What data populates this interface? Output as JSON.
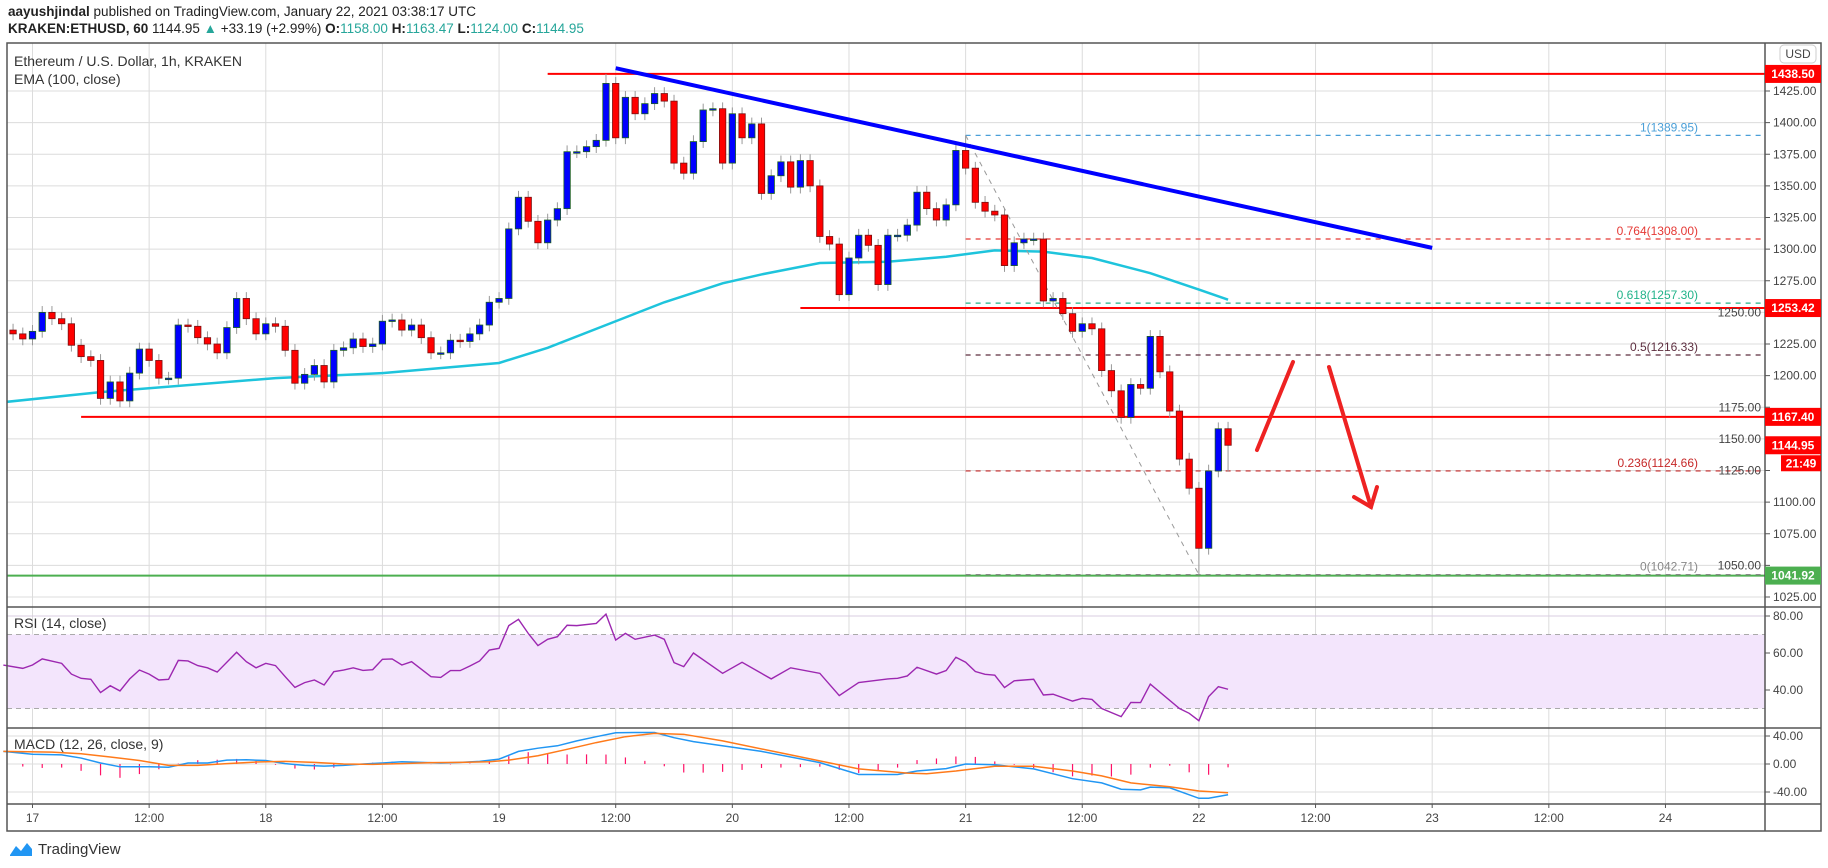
{
  "header": {
    "author": "aayushjindal",
    "published": "published on TradingView.com, January 22, 2021 03:38:17 UTC",
    "symbol": "KRAKEN:ETHUSD, 60",
    "last": "1144.95",
    "change_icon": "triangle-up-icon",
    "change": "+33.19 (+2.99%)",
    "o_label": "O:",
    "o": "1158.00",
    "h_label": "H:",
    "h": "1163.47",
    "l_label": "L:",
    "l": "1124.00",
    "c_label": "C:",
    "c": "1144.95"
  },
  "legend": {
    "title": "Ethereum / U.S. Dollar, 1h, KRAKEN",
    "ema": "EMA (100, close)",
    "rsi": "RSI (14, close)",
    "macd": "MACD (12, 26, close, 9)"
  },
  "currency": "USD",
  "countdown": "21:49",
  "logo_text": "TradingView",
  "colors": {
    "up": "#0000ff",
    "down": "#ff0000",
    "ema": "#1ec4dc",
    "trendline": "#0000ff",
    "resistance": "#ff0000",
    "support": "#4caf50",
    "rsi": "#9c27b0",
    "rsi_band": "#f3e5fc",
    "macd": "#2196f3",
    "signal": "#ff7a1a",
    "histogram": "#ff1166"
  },
  "chart_data": {
    "type": "candlestick",
    "interval": "1h",
    "first_candle": "Jan 16 21:00",
    "first_open": 1273,
    "closes": [
      1236,
      1233,
      1229,
      1235,
      1250,
      1245,
      1241,
      1224,
      1215,
      1212,
      1182,
      1195,
      1180,
      1202,
      1221,
      1212,
      1198,
      1198,
      1240,
      1239,
      1230,
      1225,
      1218,
      1238,
      1261,
      1245,
      1233,
      1241,
      1239,
      1220,
      1194,
      1201,
      1208,
      1195,
      1220,
      1222,
      1229,
      1223,
      1225,
      1243,
      1244,
      1236,
      1240,
      1230,
      1218,
      1218,
      1228,
      1227,
      1233,
      1240,
      1258,
      1261,
      1316,
      1341,
      1322,
      1305,
      1323,
      1332,
      1377,
      1377,
      1381,
      1386,
      1431,
      1388,
      1420,
      1407,
      1415,
      1423,
      1417,
      1368,
      1360,
      1385,
      1410,
      1411,
      1368,
      1407,
      1388,
      1399,
      1344,
      1358,
      1369,
      1349,
      1370,
      1350,
      1310,
      1304,
      1264,
      1293,
      1311,
      1303,
      1272,
      1311,
      1311,
      1319,
      1345,
      1332,
      1323,
      1335,
      1378,
      1364,
      1337,
      1330,
      1327,
      1287,
      1305,
      1308,
      1308,
      1259,
      1261,
      1249,
      1235,
      1241,
      1237,
      1204,
      1188,
      1167,
      1193,
      1190,
      1231,
      1203,
      1172,
      1134,
      1111,
      1063.5,
      1124.6,
      1158,
      1144.95
    ],
    "notable_wicks": [
      {
        "t": "Jan 19 11:00",
        "high": 1438.5
      },
      {
        "t": "Jan 21 00:00",
        "high": 1389.95
      },
      {
        "t": "Jan 22 00:00",
        "low": 1042.71
      },
      {
        "t": "Jan 22 03:00",
        "high": 1163.47,
        "low": 1124.0
      }
    ],
    "ema100": [
      [
        "Jan 16 21:00",
        1179
      ],
      [
        "Jan 17 07:00",
        1187
      ],
      [
        "Jan 18 01:00",
        1198
      ],
      [
        "Jan 18 12:00",
        1202
      ],
      [
        "Jan 19 00:00",
        1210
      ],
      [
        "Jan 19 05:00",
        1222
      ],
      [
        "Jan 19 12:00",
        1243
      ],
      [
        "Jan 19 17:00",
        1258
      ],
      [
        "Jan 19 23:00",
        1273
      ],
      [
        "Jan 20 03:00",
        1280
      ],
      [
        "Jan 20 09:00",
        1289
      ],
      [
        "Jan 20 16:00",
        1290
      ],
      [
        "Jan 20 22:00",
        1294
      ],
      [
        "Jan 21 03:00",
        1299
      ],
      [
        "Jan 21 08:00",
        1298
      ],
      [
        "Jan 21 13:00",
        1293
      ],
      [
        "Jan 21 19:00",
        1281
      ],
      [
        "Jan 22 00:00",
        1268
      ],
      [
        "Jan 22 03:00",
        1260
      ]
    ],
    "price_axis": {
      "ticks": [
        "1425.00",
        "1400.00",
        "1375.00",
        "1350.00",
        "1325.00",
        "1300.00",
        "1275.00",
        "1250.00",
        "1225.00",
        "1200.00",
        "1175.00",
        "1150.00",
        "1125.00",
        "1100.00",
        "1075.00",
        "1050.00",
        "1025.00"
      ],
      "range": [
        1020,
        1455
      ]
    },
    "time_axis": {
      "ticks": [
        [
          "Jan 17 00:00",
          "17"
        ],
        [
          "Jan 17 12:00",
          "12:00"
        ],
        [
          "Jan 18 00:00",
          "18"
        ],
        [
          "Jan 18 12:00",
          "12:00"
        ],
        [
          "Jan 19 00:00",
          "19"
        ],
        [
          "Jan 19 12:00",
          "12:00"
        ],
        [
          "Jan 20 00:00",
          "20"
        ],
        [
          "Jan 20 12:00",
          "12:00"
        ],
        [
          "Jan 21 00:00",
          "21"
        ],
        [
          "Jan 21 12:00",
          "12:00"
        ],
        [
          "Jan 22 00:00",
          "22"
        ],
        [
          "Jan 22 12:00",
          "12:00"
        ],
        [
          "Jan 23 00:00",
          "23"
        ],
        [
          "Jan 23 12:00",
          "12:00"
        ],
        [
          "Jan 24 00:00",
          "24"
        ]
      ]
    },
    "horizontal_levels": [
      {
        "price": 1438.5,
        "label": "1438.50",
        "kind": "resistance",
        "from": "Jan 19 05:00"
      },
      {
        "price": 1253.42,
        "label": "1253.42",
        "kind": "resistance",
        "from": "Jan 20 07:00"
      },
      {
        "price": 1167.4,
        "label": "1167.40",
        "kind": "resistance",
        "from": "Jan 17 05:00"
      },
      {
        "price": 1041.92,
        "label": "1041.92",
        "kind": "support",
        "from": "Jan 16 20:00"
      }
    ],
    "last_price": {
      "price": 1144.95,
      "label": "1144.95"
    },
    "trendline": [
      [
        "Jan 19 12:00",
        1443
      ],
      [
        "Jan 23 00:00",
        1301
      ]
    ],
    "fibonacci": {
      "from": [
        "Jan 21 00:00",
        1389.95
      ],
      "to": [
        "Jan 22 00:00",
        1042.71
      ],
      "levels": [
        {
          "ratio": "1",
          "price": 1389.95,
          "label": "1(1389.95)",
          "color": "#4a9fd8"
        },
        {
          "ratio": "0.764",
          "price": 1308.0,
          "label": "0.764(1308.00)",
          "color": "#e53935"
        },
        {
          "ratio": "0.618",
          "price": 1257.3,
          "label": "0.618(1257.30)",
          "color": "#22b38a"
        },
        {
          "ratio": "0.5",
          "price": 1216.33,
          "label": "0.5(1216.33)",
          "color": "#5d2e3f"
        },
        {
          "ratio": "0.236",
          "price": 1124.66,
          "label": "0.236(1124.66)",
          "color": "#c62828"
        },
        {
          "ratio": "0",
          "price": 1042.71,
          "label": "0(1042.71)",
          "color": "#888888"
        }
      ]
    },
    "rsi": {
      "ticks": [
        "80.00",
        "60.00",
        "40.00"
      ],
      "band": [
        30,
        70
      ],
      "values": [
        [
          "Jan 16 21:00",
          53.5
        ],
        [
          "Jan 16 23:00",
          51.7
        ],
        [
          "Jan 17 00:00",
          53.5
        ],
        [
          "Jan 17 01:00",
          56.8
        ],
        [
          "Jan 17 03:00",
          54.4
        ],
        [
          "Jan 17 04:00",
          48.6
        ],
        [
          "Jan 17 05:00",
          46.3
        ],
        [
          "Jan 17 06:00",
          45.8
        ],
        [
          "Jan 17 07:00",
          38.6
        ],
        [
          "Jan 17 08:00",
          42.3
        ],
        [
          "Jan 17 09:00",
          39.5
        ],
        [
          "Jan 17 10:00",
          46
        ],
        [
          "Jan 17 11:00",
          50.8
        ],
        [
          "Jan 17 12:00",
          48.6
        ],
        [
          "Jan 17 13:00",
          45.4
        ],
        [
          "Jan 17 14:00",
          45.8
        ],
        [
          "Jan 17 15:00",
          56
        ],
        [
          "Jan 17 16:00",
          55.7
        ],
        [
          "Jan 17 17:00",
          53.2
        ],
        [
          "Jan 17 18:00",
          52
        ],
        [
          "Jan 17 19:00",
          49.7
        ],
        [
          "Jan 17 21:00",
          60.4
        ],
        [
          "Jan 17 22:00",
          55.3
        ],
        [
          "Jan 17 23:00",
          52
        ],
        [
          "Jan 18 00:00",
          54.4
        ],
        [
          "Jan 18 01:00",
          53.2
        ],
        [
          "Jan 18 02:00",
          47.2
        ],
        [
          "Jan 18 03:00",
          41.4
        ],
        [
          "Jan 18 04:00",
          44
        ],
        [
          "Jan 18 05:00",
          45.4
        ],
        [
          "Jan 18 06:00",
          42.7
        ],
        [
          "Jan 18 07:00",
          49.9
        ],
        [
          "Jan 18 08:00",
          50.8
        ],
        [
          "Jan 18 09:00",
          52
        ],
        [
          "Jan 18 10:00",
          50.6
        ],
        [
          "Jan 18 11:00",
          51
        ],
        [
          "Jan 18 12:00",
          56.6
        ],
        [
          "Jan 18 13:00",
          56.8
        ],
        [
          "Jan 18 14:00",
          53.5
        ],
        [
          "Jan 18 15:00",
          55.3
        ],
        [
          "Jan 18 17:00",
          47.2
        ],
        [
          "Jan 18 18:00",
          46.8
        ],
        [
          "Jan 18 19:00",
          50.5
        ],
        [
          "Jan 18 20:00",
          50.5
        ],
        [
          "Jan 18 21:00",
          53
        ],
        [
          "Jan 18 22:00",
          55.7
        ],
        [
          "Jan 18 23:00",
          61.6
        ],
        [
          "Jan 19 00:00",
          62.5
        ],
        [
          "Jan 19 01:00",
          74.8
        ],
        [
          "Jan 19 02:00",
          78.2
        ],
        [
          "Jan 19 03:00",
          70.6
        ],
        [
          "Jan 19 04:00",
          64
        ],
        [
          "Jan 19 05:00",
          67.4
        ],
        [
          "Jan 19 06:00",
          68.8
        ],
        [
          "Jan 19 07:00",
          75
        ],
        [
          "Jan 19 08:00",
          74.8
        ],
        [
          "Jan 19 10:00",
          76
        ],
        [
          "Jan 19 11:00",
          81
        ],
        [
          "Jan 19 12:00",
          67
        ],
        [
          "Jan 19 13:00",
          70.6
        ],
        [
          "Jan 19 14:00",
          67.4
        ],
        [
          "Jan 19 16:00",
          69.7
        ],
        [
          "Jan 19 17:00",
          67.4
        ],
        [
          "Jan 19 18:00",
          54.8
        ],
        [
          "Jan 19 19:00",
          52.6
        ],
        [
          "Jan 19 20:00",
          60
        ],
        [
          "Jan 19 23:00",
          49
        ],
        [
          "Jan 20 01:00",
          55
        ],
        [
          "Jan 20 04:00",
          46
        ],
        [
          "Jan 20 06:00",
          52
        ],
        [
          "Jan 20 09:00",
          49
        ],
        [
          "Jan 20 11:00",
          37
        ],
        [
          "Jan 20 13:00",
          44
        ],
        [
          "Jan 20 16:00",
          46
        ],
        [
          "Jan 20 17:00",
          46.3
        ],
        [
          "Jan 20 18:00",
          47.6
        ],
        [
          "Jan 20 19:00",
          52.3
        ],
        [
          "Jan 20 21:00",
          48.6
        ],
        [
          "Jan 20 22:00",
          50.5
        ],
        [
          "Jan 20 23:00",
          57.7
        ],
        [
          "Jan 21 00:00",
          55
        ],
        [
          "Jan 21 01:00",
          50
        ],
        [
          "Jan 21 02:00",
          48.5
        ],
        [
          "Jan 21 03:00",
          48
        ],
        [
          "Jan 21 04:00",
          41.3
        ],
        [
          "Jan 21 05:00",
          45
        ],
        [
          "Jan 21 07:00",
          45.8
        ],
        [
          "Jan 21 08:00",
          37.3
        ],
        [
          "Jan 21 09:00",
          37.7
        ],
        [
          "Jan 21 11:00",
          34
        ],
        [
          "Jan 21 12:00",
          35.5
        ],
        [
          "Jan 21 13:00",
          34.9
        ],
        [
          "Jan 21 14:00",
          30
        ],
        [
          "Jan 21 16:00",
          25.6
        ],
        [
          "Jan 21 17:00",
          33.3
        ],
        [
          "Jan 21 18:00",
          33.2
        ],
        [
          "Jan 21 19:00",
          43.2
        ],
        [
          "Jan 21 22:00",
          30
        ],
        [
          "Jan 21 23:00",
          27.4
        ],
        [
          "Jan 22 00:00",
          23.4
        ],
        [
          "Jan 22 01:00",
          36.4
        ],
        [
          "Jan 22 02:00",
          41.8
        ],
        [
          "Jan 22 03:00",
          40.4
        ]
      ]
    },
    "macd": {
      "ticks": [
        "40.00",
        "0.00",
        "-40.00"
      ],
      "macd": [
        [
          "Jan 16 21:00",
          18
        ],
        [
          "Jan 17 00:00",
          14
        ],
        [
          "Jan 17 03:00",
          13
        ],
        [
          "Jan 17 05:00",
          8.5
        ],
        [
          "Jan 17 07:00",
          1.4
        ],
        [
          "Jan 17 09:00",
          -4
        ],
        [
          "Jan 17 12:00",
          -4
        ],
        [
          "Jan 17 14:00",
          -4.7
        ],
        [
          "Jan 17 16:00",
          1.4
        ],
        [
          "Jan 17 18:00",
          1.4
        ],
        [
          "Jan 17 20:00",
          5.6
        ],
        [
          "Jan 17 22:00",
          6
        ],
        [
          "Jan 18 00:00",
          5
        ],
        [
          "Jan 18 02:00",
          0.5
        ],
        [
          "Jan 18 04:00",
          -2
        ],
        [
          "Jan 18 06:00",
          -3
        ],
        [
          "Jan 18 08:00",
          -2
        ],
        [
          "Jan 18 10:00",
          0
        ],
        [
          "Jan 18 12:00",
          1.4
        ],
        [
          "Jan 18 14:00",
          3.3
        ],
        [
          "Jan 18 16:00",
          2.4
        ],
        [
          "Jan 18 18:00",
          1.4
        ],
        [
          "Jan 18 20:00",
          2.4
        ],
        [
          "Jan 18 22:00",
          3.8
        ],
        [
          "Jan 19 00:00",
          7
        ],
        [
          "Jan 19 02:00",
          18
        ],
        [
          "Jan 19 04:00",
          22.6
        ],
        [
          "Jan 19 06:00",
          26
        ],
        [
          "Jan 19 08:00",
          33
        ],
        [
          "Jan 19 10:00",
          39
        ],
        [
          "Jan 19 12:00",
          44.7
        ],
        [
          "Jan 19 14:00",
          45
        ],
        [
          "Jan 19 16:00",
          45
        ],
        [
          "Jan 19 18:00",
          37.6
        ],
        [
          "Jan 19 20:00",
          32
        ],
        [
          "Jan 20 03:00",
          18
        ],
        [
          "Jan 20 09:00",
          2
        ],
        [
          "Jan 20 13:00",
          -15
        ],
        [
          "Jan 20 17:00",
          -15
        ],
        [
          "Jan 20 19:00",
          -10
        ],
        [
          "Jan 20 22:00",
          -6.6
        ],
        [
          "Jan 21 00:00",
          0
        ],
        [
          "Jan 21 03:00",
          -1
        ],
        [
          "Jan 21 07:00",
          -7
        ],
        [
          "Jan 21 11:00",
          -21
        ],
        [
          "Jan 21 14:00",
          -27
        ],
        [
          "Jan 21 16:00",
          -36
        ],
        [
          "Jan 21 18:00",
          -37
        ],
        [
          "Jan 21 19:00",
          -33
        ],
        [
          "Jan 21 21:00",
          -34
        ],
        [
          "Jan 22 00:00",
          -49
        ],
        [
          "Jan 22 01:00",
          -49
        ],
        [
          "Jan 22 03:00",
          -44
        ]
      ],
      "signal": [
        [
          "Jan 16 21:00",
          18
        ],
        [
          "Jan 17 02:00",
          17
        ],
        [
          "Jan 17 05:00",
          14.6
        ],
        [
          "Jan 17 08:00",
          10
        ],
        [
          "Jan 17 11:00",
          5
        ],
        [
          "Jan 17 14:00",
          -2
        ],
        [
          "Jan 17 17:00",
          -2
        ],
        [
          "Jan 17 20:00",
          0.5
        ],
        [
          "Jan 17 23:00",
          2.8
        ],
        [
          "Jan 18 02:00",
          3.8
        ],
        [
          "Jan 18 05:00",
          2.4
        ],
        [
          "Jan 18 08:00",
          0
        ],
        [
          "Jan 18 11:00",
          -0.5
        ],
        [
          "Jan 18 14:00",
          0.5
        ],
        [
          "Jan 18 17:00",
          2
        ],
        [
          "Jan 18 20:00",
          2.4
        ],
        [
          "Jan 18 23:00",
          3.3
        ],
        [
          "Jan 19 01:00",
          5.6
        ],
        [
          "Jan 19 04:00",
          11.8
        ],
        [
          "Jan 19 07:00",
          21
        ],
        [
          "Jan 19 10:00",
          30.6
        ],
        [
          "Jan 19 13:00",
          39
        ],
        [
          "Jan 19 16:00",
          43.8
        ],
        [
          "Jan 19 19:00",
          42.4
        ],
        [
          "Jan 19 23:00",
          33
        ],
        [
          "Jan 20 06:00",
          13
        ],
        [
          "Jan 20 13:00",
          -7
        ],
        [
          "Jan 20 18:00",
          -13
        ],
        [
          "Jan 20 20:00",
          -14
        ],
        [
          "Jan 20 23:00",
          -10
        ],
        [
          "Jan 21 03:00",
          -3.3
        ],
        [
          "Jan 21 07:00",
          -3.3
        ],
        [
          "Jan 21 11:00",
          -10
        ],
        [
          "Jan 21 14:00",
          -17
        ],
        [
          "Jan 21 17:00",
          -27
        ],
        [
          "Jan 21 21:00",
          -32.5
        ],
        [
          "Jan 22 00:00",
          -38.6
        ],
        [
          "Jan 22 03:00",
          -41
        ]
      ]
    }
  }
}
